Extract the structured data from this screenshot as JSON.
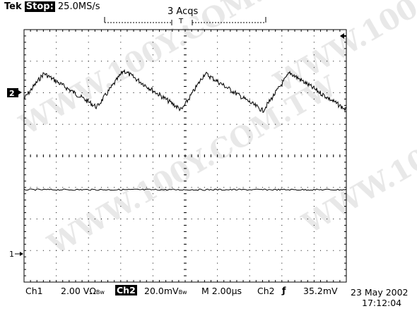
{
  "header": {
    "brand": "Tek",
    "run_state": "Stop:",
    "sample_rate": "25.0MS/s",
    "acquisitions": "3 Acqs",
    "trigger_marker": "T"
  },
  "markers": {
    "ch2_label": "2",
    "ch1_label": "1"
  },
  "footer": {
    "ch1_label": "Ch1",
    "ch1_scale": "2.00 VΩ",
    "ch1_suffix": "Bw",
    "ch2_label": "Ch2",
    "ch2_scale": "20.0mV",
    "ch2_suffix": "Bw",
    "timebase": "M 2.00µs",
    "trigger_source": "Ch2",
    "trigger_slope_symbol": "ƒ",
    "trigger_level": "35.2mV",
    "date": "23 May 2002",
    "time": "17:12:04"
  },
  "watermark": "WWW.100Y.COM.TW",
  "colors": {
    "trace": "#000000",
    "grid": "#000000",
    "background": "#ffffff"
  }
}
